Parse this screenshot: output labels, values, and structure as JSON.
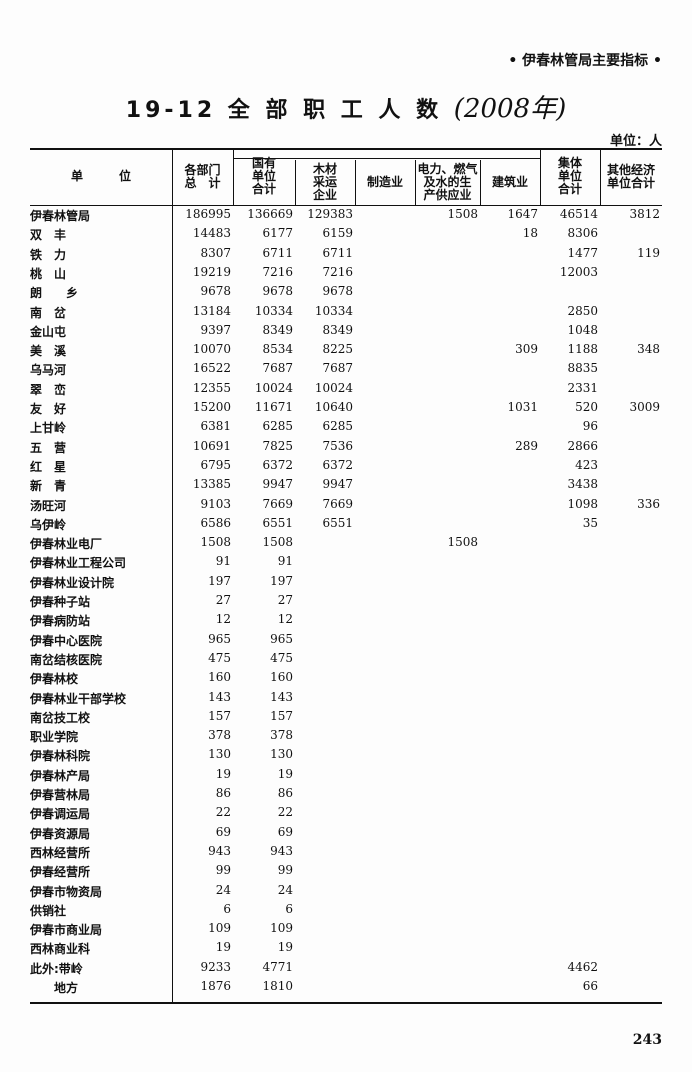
{
  "running_header": "• 伊春林管局主要指标 •",
  "title": "19-12  全 部 职 工 人 数",
  "handwritten_note": "(2008年)",
  "unit": "单位：人",
  "columns": [
    "单　　　位",
    "各部门\n总　计",
    "国有\n单位\n合计",
    "木材\n采运\n企业",
    "制造业",
    "电力、燃气\n及水的生\n产供应业",
    "建筑业",
    "集体\n单位\n合计",
    "其他经济\n单位合计"
  ],
  "rows": [
    [
      "伊春林管局",
      "186995",
      "136669",
      "129383",
      "",
      "1508",
      "1647",
      "46514",
      "3812"
    ],
    [
      "双　丰",
      "14483",
      "6177",
      "6159",
      "",
      "",
      "18",
      "8306",
      ""
    ],
    [
      "铁　力",
      "8307",
      "6711",
      "6711",
      "",
      "",
      "",
      "1477",
      "119"
    ],
    [
      "桃　山",
      "19219",
      "7216",
      "7216",
      "",
      "",
      "",
      "12003",
      ""
    ],
    [
      "朗　　乡",
      "9678",
      "9678",
      "9678",
      "",
      "",
      "",
      "",
      ""
    ],
    [
      "南　岔",
      "13184",
      "10334",
      "10334",
      "",
      "",
      "",
      "2850",
      ""
    ],
    [
      "金山屯",
      "9397",
      "8349",
      "8349",
      "",
      "",
      "",
      "1048",
      ""
    ],
    [
      "美　溪",
      "10070",
      "8534",
      "8225",
      "",
      "",
      "309",
      "1188",
      "348"
    ],
    [
      "乌马河",
      "16522",
      "7687",
      "7687",
      "",
      "",
      "",
      "8835",
      ""
    ],
    [
      "翠　峦",
      "12355",
      "10024",
      "10024",
      "",
      "",
      "",
      "2331",
      ""
    ],
    [
      "友　好",
      "15200",
      "11671",
      "10640",
      "",
      "",
      "1031",
      "520",
      "3009"
    ],
    [
      "上甘岭",
      "6381",
      "6285",
      "6285",
      "",
      "",
      "",
      "96",
      ""
    ],
    [
      "五　营",
      "10691",
      "7825",
      "7536",
      "",
      "",
      "289",
      "2866",
      ""
    ],
    [
      "红　星",
      "6795",
      "6372",
      "6372",
      "",
      "",
      "",
      "423",
      ""
    ],
    [
      "新　青",
      "13385",
      "9947",
      "9947",
      "",
      "",
      "",
      "3438",
      ""
    ],
    [
      "汤旺河",
      "9103",
      "7669",
      "7669",
      "",
      "",
      "",
      "1098",
      "336"
    ],
    [
      "乌伊岭",
      "6586",
      "6551",
      "6551",
      "",
      "",
      "",
      "35",
      ""
    ],
    [
      "伊春林业电厂",
      "1508",
      "1508",
      "",
      "",
      "1508",
      "",
      "",
      ""
    ],
    [
      "伊春林业工程公司",
      "91",
      "91",
      "",
      "",
      "",
      "",
      "",
      ""
    ],
    [
      "伊春林业设计院",
      "197",
      "197",
      "",
      "",
      "",
      "",
      "",
      ""
    ],
    [
      "伊春种子站",
      "27",
      "27",
      "",
      "",
      "",
      "",
      "",
      ""
    ],
    [
      "伊春病防站",
      "12",
      "12",
      "",
      "",
      "",
      "",
      "",
      ""
    ],
    [
      "伊春中心医院",
      "965",
      "965",
      "",
      "",
      "",
      "",
      "",
      ""
    ],
    [
      "南岔结核医院",
      "475",
      "475",
      "",
      "",
      "",
      "",
      "",
      ""
    ],
    [
      "伊春林校",
      "160",
      "160",
      "",
      "",
      "",
      "",
      "",
      ""
    ],
    [
      "伊春林业干部学校",
      "143",
      "143",
      "",
      "",
      "",
      "",
      "",
      ""
    ],
    [
      "南岔技工校",
      "157",
      "157",
      "",
      "",
      "",
      "",
      "",
      ""
    ],
    [
      "职业学院",
      "378",
      "378",
      "",
      "",
      "",
      "",
      "",
      ""
    ],
    [
      "伊春林科院",
      "130",
      "130",
      "",
      "",
      "",
      "",
      "",
      ""
    ],
    [
      "伊春林产局",
      "19",
      "19",
      "",
      "",
      "",
      "",
      "",
      ""
    ],
    [
      "伊春营林局",
      "86",
      "86",
      "",
      "",
      "",
      "",
      "",
      ""
    ],
    [
      "伊春调运局",
      "22",
      "22",
      "",
      "",
      "",
      "",
      "",
      ""
    ],
    [
      "伊春资源局",
      "69",
      "69",
      "",
      "",
      "",
      "",
      "",
      ""
    ],
    [
      "西林经营所",
      "943",
      "943",
      "",
      "",
      "",
      "",
      "",
      ""
    ],
    [
      "伊春经营所",
      "99",
      "99",
      "",
      "",
      "",
      "",
      "",
      ""
    ],
    [
      "伊春市物资局",
      "24",
      "24",
      "",
      "",
      "",
      "",
      "",
      ""
    ],
    [
      "供销社",
      "6",
      "6",
      "",
      "",
      "",
      "",
      "",
      ""
    ],
    [
      "伊春市商业局",
      "109",
      "109",
      "",
      "",
      "",
      "",
      "",
      ""
    ],
    [
      "西林商业科",
      "19",
      "19",
      "",
      "",
      "",
      "",
      "",
      ""
    ],
    [
      "此外:带岭",
      "9233",
      "4771",
      "",
      "",
      "",
      "",
      "4462",
      ""
    ],
    [
      "　　地方",
      "1876",
      "1810",
      "",
      "",
      "",
      "",
      "66",
      ""
    ]
  ],
  "page_number": "243"
}
